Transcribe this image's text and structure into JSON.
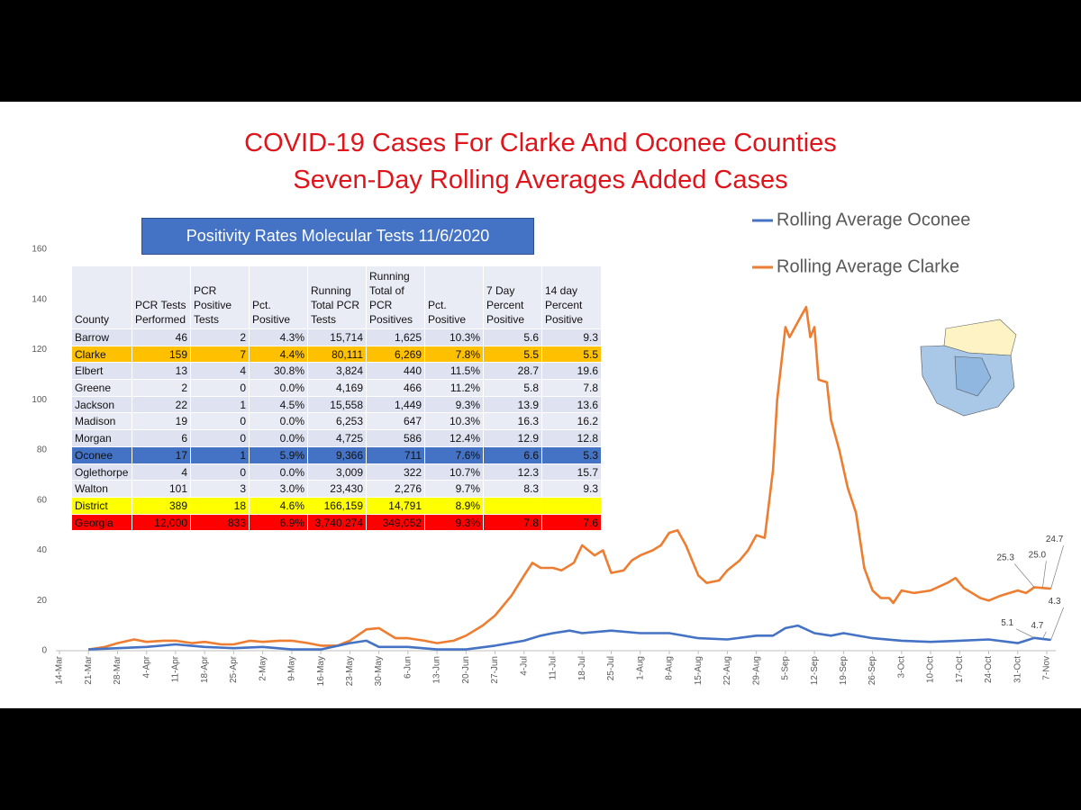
{
  "title": [
    "COVID-19 Cases For Clarke And Oconee Counties",
    "Seven-Day Rolling Averages Added Cases"
  ],
  "chart_data": {
    "type": "line",
    "ylim": [
      0,
      160
    ],
    "yticks": [
      0,
      20,
      40,
      60,
      80,
      100,
      120,
      140,
      160
    ],
    "xticks": [
      "14-Mar",
      "21-Mar",
      "28-Mar",
      "4-Apr",
      "11-Apr",
      "18-Apr",
      "25-Apr",
      "2-May",
      "9-May",
      "16-May",
      "23-May",
      "30-May",
      "6-Jun",
      "13-Jun",
      "20-Jun",
      "27-Jun",
      "4-Jul",
      "11-Jul",
      "18-Jul",
      "25-Jul",
      "1-Aug",
      "8-Aug",
      "15-Aug",
      "22-Aug",
      "29-Aug",
      "5-Sep",
      "12-Sep",
      "19-Sep",
      "26-Sep",
      "3-Oct",
      "10-Oct",
      "17-Oct",
      "24-Oct",
      "31-Oct",
      "7-Nov"
    ],
    "legend": "top-right",
    "series": [
      {
        "name": "Rolling Average Oconee",
        "color": "#4472c4",
        "x": [
          "21-Mar",
          "28-Mar",
          "4-Apr",
          "11-Apr",
          "18-Apr",
          "25-Apr",
          "2-May",
          "9-May",
          "16-May",
          "23-May",
          "27-May",
          "30-May",
          "6-Jun",
          "13-Jun",
          "20-Jun",
          "27-Jun",
          "4-Jul",
          "8-Jul",
          "11-Jul",
          "15-Jul",
          "18-Jul",
          "25-Jul",
          "1-Aug",
          "8-Aug",
          "15-Aug",
          "22-Aug",
          "29-Aug",
          "2-Sep",
          "5-Sep",
          "8-Sep",
          "12-Sep",
          "16-Sep",
          "19-Sep",
          "26-Sep",
          "3-Oct",
          "10-Oct",
          "17-Oct",
          "24-Oct",
          "31-Oct",
          "4-Nov",
          "6-Nov",
          "8-Nov"
        ],
        "values": [
          0.5,
          1,
          1.5,
          2.5,
          1.5,
          1,
          1.5,
          0.5,
          0.5,
          3,
          4,
          1.5,
          1.5,
          0.5,
          0.5,
          2,
          4,
          6,
          7,
          8,
          7,
          8,
          7,
          7,
          5,
          4.5,
          6,
          6,
          9,
          10,
          7,
          6,
          7,
          5,
          4,
          3.5,
          4,
          4.5,
          3,
          5.1,
          4.7,
          4.3
        ],
        "value_labels": [
          null,
          null,
          null,
          null,
          null,
          null,
          null,
          null,
          null,
          null,
          null,
          null,
          null,
          null,
          null,
          null,
          null,
          null,
          null,
          null,
          null,
          null,
          null,
          null,
          null,
          null,
          null,
          null,
          null,
          null,
          null,
          null,
          null,
          null,
          null,
          null,
          null,
          null,
          null,
          "5.1",
          "4.7",
          "4.3"
        ]
      },
      {
        "name": "Rolling Average Clarke",
        "color": "#ed7d31",
        "x": [
          "21-Mar",
          "25-Mar",
          "28-Mar",
          "1-Apr",
          "4-Apr",
          "8-Apr",
          "11-Apr",
          "15-Apr",
          "18-Apr",
          "22-Apr",
          "25-Apr",
          "29-Apr",
          "2-May",
          "6-May",
          "9-May",
          "13-May",
          "16-May",
          "20-May",
          "23-May",
          "27-May",
          "30-May",
          "3-Jun",
          "6-Jun",
          "10-Jun",
          "13-Jun",
          "17-Jun",
          "20-Jun",
          "24-Jun",
          "27-Jun",
          "1-Jul",
          "4-Jul",
          "6-Jul",
          "8-Jul",
          "11-Jul",
          "13-Jul",
          "16-Jul",
          "18-Jul",
          "21-Jul",
          "23-Jul",
          "25-Jul",
          "28-Jul",
          "30-Jul",
          "1-Aug",
          "4-Aug",
          "6-Aug",
          "8-Aug",
          "10-Aug",
          "12-Aug",
          "15-Aug",
          "17-Aug",
          "20-Aug",
          "22-Aug",
          "25-Aug",
          "27-Aug",
          "29-Aug",
          "31-Aug",
          "2-Sep",
          "3-Sep",
          "5-Sep",
          "6-Sep",
          "8-Sep",
          "10-Sep",
          "11-Sep",
          "12-Sep",
          "13-Sep",
          "15-Sep",
          "16-Sep",
          "18-Sep",
          "20-Sep",
          "22-Sep",
          "24-Sep",
          "26-Sep",
          "28-Sep",
          "30-Sep",
          "1-Oct",
          "3-Oct",
          "6-Oct",
          "10-Oct",
          "14-Oct",
          "16-Oct",
          "18-Oct",
          "22-Oct",
          "24-Oct",
          "27-Oct",
          "29-Oct",
          "31-Oct",
          "2-Nov",
          "4-Nov",
          "6-Nov",
          "8-Nov"
        ],
        "values": [
          0.5,
          1.5,
          3,
          4.5,
          3.5,
          4,
          4,
          3,
          3.5,
          2.5,
          2.5,
          4,
          3.5,
          4,
          4,
          3,
          2,
          2,
          4,
          8.5,
          9,
          5,
          5,
          4,
          3,
          4,
          6,
          10,
          14,
          22,
          30,
          35,
          33,
          33,
          32,
          35,
          42,
          38,
          40,
          31,
          32,
          36,
          38,
          40,
          42,
          47,
          48,
          42,
          30,
          27,
          28,
          32,
          36,
          40,
          46,
          45,
          72,
          100,
          129,
          125,
          131,
          137,
          125,
          129,
          108,
          107,
          92,
          80,
          65,
          55,
          33,
          24,
          21,
          21,
          19,
          24,
          23,
          24,
          27,
          29,
          25,
          21,
          20,
          22,
          23,
          24,
          23,
          25.3,
          25.0,
          24.7
        ],
        "value_labels": [
          null,
          null,
          null,
          null,
          null,
          null,
          null,
          null,
          null,
          null,
          null,
          null,
          null,
          null,
          null,
          null,
          null,
          null,
          null,
          null,
          null,
          null,
          null,
          null,
          null,
          null,
          null,
          null,
          null,
          null,
          null,
          null,
          null,
          null,
          null,
          null,
          null,
          null,
          null,
          null,
          null,
          null,
          null,
          null,
          null,
          null,
          null,
          null,
          null,
          null,
          null,
          null,
          null,
          null,
          null,
          null,
          null,
          null,
          null,
          null,
          null,
          null,
          null,
          null,
          null,
          null,
          null,
          null,
          null,
          null,
          null,
          null,
          null,
          null,
          null,
          null,
          null,
          null,
          null,
          null,
          null,
          null,
          null,
          null,
          null,
          null,
          null,
          "25.3",
          "25.0",
          "24.7"
        ]
      }
    ]
  },
  "table": {
    "title": "Positivity Rates Molecular Tests 11/6/2020",
    "columns": [
      "County",
      "PCR Tests Performed",
      "PCR Positive Tests",
      "Pct. Positive",
      "Running Total PCR Tests",
      "Running Total of PCR Positives",
      "Pct. Positive",
      "7 Day Percent Positive",
      "14 day Percent Positive"
    ],
    "rows": [
      {
        "cells": [
          "Barrow",
          "46",
          "2",
          "4.3%",
          "15,714",
          "1,625",
          "10.3%",
          "5.6",
          "9.3"
        ]
      },
      {
        "cells": [
          "Clarke",
          "159",
          "7",
          "4.4%",
          "80,111",
          "6,269",
          "7.8%",
          "5.5",
          "5.5"
        ],
        "fill": "#ffc000"
      },
      {
        "cells": [
          "Elbert",
          "13",
          "4",
          "30.8%",
          "3,824",
          "440",
          "11.5%",
          "28.7",
          "19.6"
        ]
      },
      {
        "cells": [
          "Greene",
          "2",
          "0",
          "0.0%",
          "4,169",
          "466",
          "11.2%",
          "5.8",
          "7.8"
        ]
      },
      {
        "cells": [
          "Jackson",
          "22",
          "1",
          "4.5%",
          "15,558",
          "1,449",
          "9.3%",
          "13.9",
          "13.6"
        ]
      },
      {
        "cells": [
          "Madison",
          "19",
          "0",
          "0.0%",
          "6,253",
          "647",
          "10.3%",
          "16.3",
          "16.2"
        ]
      },
      {
        "cells": [
          "Morgan",
          "6",
          "0",
          "0.0%",
          "4,725",
          "586",
          "12.4%",
          "12.9",
          "12.8"
        ]
      },
      {
        "cells": [
          "Oconee",
          "17",
          "1",
          "5.9%",
          "9,366",
          "711",
          "7.6%",
          "6.6",
          "5.3"
        ],
        "fill": "#4472c4"
      },
      {
        "cells": [
          "Oglethorpe",
          "4",
          "0",
          "0.0%",
          "3,009",
          "322",
          "10.7%",
          "12.3",
          "15.7"
        ]
      },
      {
        "cells": [
          "Walton",
          "101",
          "3",
          "3.0%",
          "23,430",
          "2,276",
          "9.7%",
          "8.3",
          "9.3"
        ]
      },
      {
        "cells": [
          "District",
          "389",
          "18",
          "4.6%",
          "166,159",
          "14,791",
          "8.9%",
          null,
          null
        ],
        "fill": "#ffff00"
      },
      {
        "cells": [
          "Georgia",
          "12,000",
          "833",
          "6.9%",
          "3,740,274",
          "349,052",
          "9.3%",
          "7.8",
          "7.6"
        ],
        "fill": "#ff0000"
      }
    ]
  }
}
